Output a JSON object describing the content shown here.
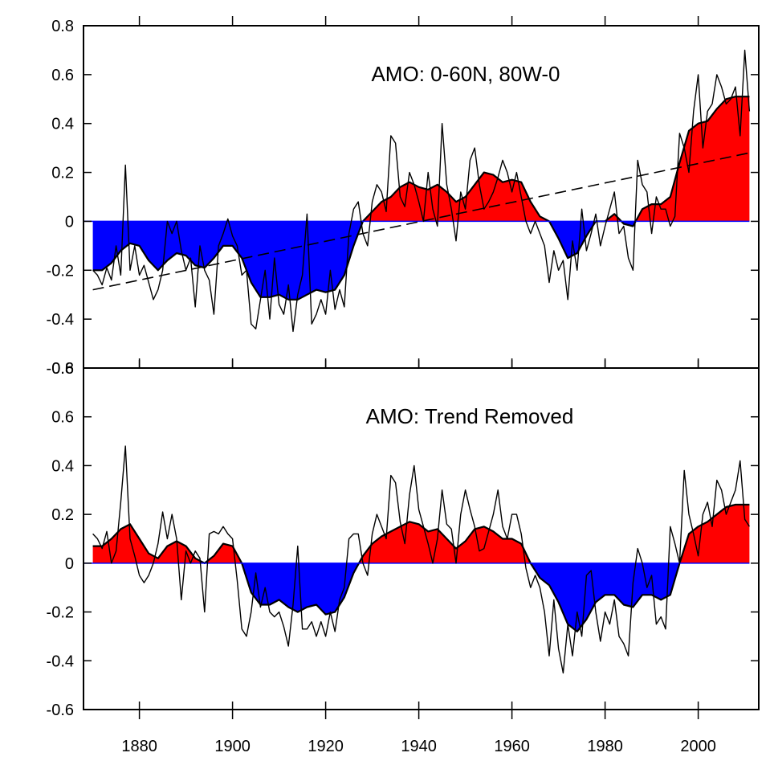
{
  "chart_data": [
    {
      "type": "area",
      "title": "AMO: 0-60N, 80W-0",
      "xlabel": "",
      "ylabel": "",
      "xlim": [
        1868,
        2013
      ],
      "ylim": [
        -0.6,
        0.8
      ],
      "y_ticks": [
        "0.8",
        "0.6",
        "0.4",
        "0.2",
        "0",
        "-0.2",
        "-0.4",
        "-0.6"
      ],
      "x_ticks": [
        1880,
        1900,
        1920,
        1940,
        1960,
        1980,
        2000
      ],
      "colors": {
        "positive": "#ff0000",
        "negative": "#0000ff"
      },
      "series": [
        {
          "kind": "smoothed-fill",
          "x": [
            1870,
            1872,
            1874,
            1876,
            1878,
            1880,
            1882,
            1884,
            1886,
            1888,
            1890,
            1892,
            1894,
            1896,
            1898,
            1900,
            1902,
            1904,
            1906,
            1908,
            1910,
            1912,
            1914,
            1916,
            1918,
            1920,
            1922,
            1924,
            1926,
            1928,
            1930,
            1932,
            1934,
            1936,
            1938,
            1940,
            1942,
            1944,
            1946,
            1948,
            1950,
            1952,
            1954,
            1956,
            1958,
            1960,
            1962,
            1964,
            1966,
            1968,
            1970,
            1972,
            1974,
            1976,
            1978,
            1980,
            1982,
            1984,
            1986,
            1988,
            1990,
            1992,
            1994,
            1996,
            1998,
            2000,
            2002,
            2004,
            2006,
            2008,
            2010,
            2011
          ],
          "values": [
            -0.2,
            -0.2,
            -0.17,
            -0.12,
            -0.09,
            -0.1,
            -0.16,
            -0.2,
            -0.16,
            -0.13,
            -0.14,
            -0.18,
            -0.19,
            -0.15,
            -0.1,
            -0.1,
            -0.15,
            -0.25,
            -0.31,
            -0.31,
            -0.3,
            -0.32,
            -0.32,
            -0.3,
            -0.28,
            -0.29,
            -0.28,
            -0.22,
            -0.1,
            0.0,
            0.04,
            0.08,
            0.1,
            0.14,
            0.16,
            0.14,
            0.13,
            0.15,
            0.12,
            0.08,
            0.1,
            0.15,
            0.2,
            0.19,
            0.16,
            0.17,
            0.16,
            0.08,
            0.02,
            0.0,
            -0.07,
            -0.15,
            -0.13,
            -0.06,
            0.0,
            0.0,
            0.03,
            -0.01,
            -0.02,
            0.05,
            0.07,
            0.07,
            0.1,
            0.24,
            0.37,
            0.4,
            0.41,
            0.46,
            0.5,
            0.51,
            0.51,
            0.51
          ]
        },
        {
          "kind": "annual-line",
          "x": [
            1870,
            1871,
            1872,
            1873,
            1874,
            1875,
            1876,
            1877,
            1878,
            1879,
            1880,
            1881,
            1882,
            1883,
            1884,
            1885,
            1886,
            1887,
            1888,
            1889,
            1890,
            1891,
            1892,
            1893,
            1894,
            1895,
            1896,
            1897,
            1898,
            1899,
            1900,
            1901,
            1902,
            1903,
            1904,
            1905,
            1906,
            1907,
            1908,
            1909,
            1910,
            1911,
            1912,
            1913,
            1914,
            1915,
            1916,
            1917,
            1918,
            1919,
            1920,
            1921,
            1922,
            1923,
            1924,
            1925,
            1926,
            1927,
            1928,
            1929,
            1930,
            1931,
            1932,
            1933,
            1934,
            1935,
            1936,
            1937,
            1938,
            1939,
            1940,
            1941,
            1942,
            1943,
            1944,
            1945,
            1946,
            1947,
            1948,
            1949,
            1950,
            1951,
            1952,
            1953,
            1954,
            1955,
            1956,
            1957,
            1958,
            1959,
            1960,
            1961,
            1962,
            1963,
            1964,
            1965,
            1966,
            1967,
            1968,
            1969,
            1970,
            1971,
            1972,
            1973,
            1974,
            1975,
            1976,
            1977,
            1978,
            1979,
            1980,
            1981,
            1982,
            1983,
            1984,
            1985,
            1986,
            1987,
            1988,
            1989,
            1990,
            1991,
            1992,
            1993,
            1994,
            1995,
            1996,
            1997,
            1998,
            1999,
            2000,
            2001,
            2002,
            2003,
            2004,
            2005,
            2006,
            2007,
            2008,
            2009,
            2010,
            2011
          ],
          "values": [
            -0.2,
            -0.22,
            -0.26,
            -0.19,
            -0.24,
            -0.1,
            -0.22,
            0.23,
            -0.2,
            -0.1,
            -0.22,
            -0.18,
            -0.25,
            -0.32,
            -0.28,
            -0.2,
            0.0,
            -0.05,
            0.0,
            -0.12,
            -0.2,
            -0.15,
            -0.35,
            -0.1,
            -0.2,
            -0.24,
            -0.38,
            -0.1,
            -0.05,
            0.01,
            -0.06,
            -0.1,
            -0.22,
            -0.2,
            -0.42,
            -0.44,
            -0.32,
            -0.2,
            -0.4,
            -0.15,
            -0.34,
            -0.38,
            -0.26,
            -0.45,
            -0.3,
            -0.22,
            0.03,
            -0.42,
            -0.38,
            -0.32,
            -0.38,
            -0.2,
            -0.36,
            -0.28,
            -0.35,
            -0.05,
            0.05,
            0.08,
            -0.05,
            -0.1,
            0.08,
            0.15,
            0.12,
            0.04,
            0.35,
            0.32,
            0.1,
            0.06,
            0.2,
            0.15,
            0.08,
            0.0,
            0.2,
            0.05,
            -0.02,
            0.4,
            0.15,
            0.05,
            -0.08,
            0.12,
            0.05,
            0.25,
            0.3,
            0.15,
            0.05,
            0.08,
            0.12,
            0.18,
            0.25,
            0.2,
            0.12,
            0.2,
            0.1,
            0.0,
            -0.05,
            0.0,
            -0.05,
            -0.1,
            -0.25,
            -0.12,
            -0.2,
            -0.16,
            -0.32,
            -0.08,
            -0.2,
            0.05,
            -0.12,
            -0.05,
            0.03,
            -0.1,
            -0.02,
            0.05,
            0.12,
            -0.05,
            -0.02,
            -0.15,
            -0.2,
            0.25,
            0.15,
            0.12,
            -0.05,
            0.1,
            0.05,
            0.05,
            -0.02,
            0.02,
            0.36,
            0.3,
            0.2,
            0.45,
            0.6,
            0.3,
            0.45,
            0.48,
            0.6,
            0.55,
            0.48,
            0.5,
            0.55,
            0.35,
            0.7,
            0.45
          ]
        },
        {
          "kind": "trend-dashed",
          "x": [
            1870,
            2011
          ],
          "values": [
            -0.28,
            0.28
          ]
        }
      ]
    },
    {
      "type": "area",
      "title": "AMO: Trend Removed",
      "xlabel": "",
      "ylabel": "",
      "xlim": [
        1868,
        2013
      ],
      "ylim": [
        -0.6,
        0.8
      ],
      "y_ticks": [
        "0.8",
        "0.6",
        "0.4",
        "0.2",
        "0",
        "-0.2",
        "-0.4",
        "-0.6"
      ],
      "x_ticks": [
        1880,
        1900,
        1920,
        1940,
        1960,
        1980,
        2000
      ],
      "x_tick_labels": [
        "1880",
        "1900",
        "1920",
        "1940",
        "1960",
        "1980",
        "2000"
      ],
      "colors": {
        "positive": "#ff0000",
        "negative": "#0000ff"
      },
      "series": [
        {
          "kind": "smoothed-fill",
          "x": [
            1870,
            1872,
            1874,
            1876,
            1878,
            1880,
            1882,
            1884,
            1886,
            1888,
            1890,
            1892,
            1894,
            1896,
            1898,
            1900,
            1902,
            1904,
            1906,
            1908,
            1910,
            1912,
            1914,
            1916,
            1918,
            1920,
            1922,
            1924,
            1926,
            1928,
            1930,
            1932,
            1934,
            1936,
            1938,
            1940,
            1942,
            1944,
            1946,
            1948,
            1950,
            1952,
            1954,
            1956,
            1958,
            1960,
            1962,
            1964,
            1966,
            1968,
            1970,
            1972,
            1974,
            1976,
            1978,
            1980,
            1982,
            1984,
            1986,
            1988,
            1990,
            1992,
            1994,
            1996,
            1998,
            2000,
            2002,
            2004,
            2006,
            2008,
            2010,
            2011
          ],
          "values": [
            0.07,
            0.07,
            0.1,
            0.14,
            0.16,
            0.1,
            0.04,
            0.02,
            0.07,
            0.09,
            0.07,
            0.02,
            0.0,
            0.03,
            0.08,
            0.07,
            0.0,
            -0.12,
            -0.17,
            -0.17,
            -0.15,
            -0.18,
            -0.2,
            -0.18,
            -0.17,
            -0.21,
            -0.2,
            -0.14,
            -0.04,
            0.03,
            0.08,
            0.11,
            0.13,
            0.15,
            0.17,
            0.16,
            0.13,
            0.14,
            0.1,
            0.06,
            0.09,
            0.14,
            0.15,
            0.13,
            0.1,
            0.1,
            0.08,
            0.0,
            -0.06,
            -0.09,
            -0.16,
            -0.25,
            -0.28,
            -0.23,
            -0.16,
            -0.13,
            -0.13,
            -0.17,
            -0.18,
            -0.13,
            -0.13,
            -0.15,
            -0.13,
            0.0,
            0.12,
            0.15,
            0.17,
            0.2,
            0.23,
            0.24,
            0.24,
            0.24
          ]
        },
        {
          "kind": "annual-line",
          "x": [
            1870,
            1871,
            1872,
            1873,
            1874,
            1875,
            1876,
            1877,
            1878,
            1879,
            1880,
            1881,
            1882,
            1883,
            1884,
            1885,
            1886,
            1887,
            1888,
            1889,
            1890,
            1891,
            1892,
            1893,
            1894,
            1895,
            1896,
            1897,
            1898,
            1899,
            1900,
            1901,
            1902,
            1903,
            1904,
            1905,
            1906,
            1907,
            1908,
            1909,
            1910,
            1911,
            1912,
            1913,
            1914,
            1915,
            1916,
            1917,
            1918,
            1919,
            1920,
            1921,
            1922,
            1923,
            1924,
            1925,
            1926,
            1927,
            1928,
            1929,
            1930,
            1931,
            1932,
            1933,
            1934,
            1935,
            1936,
            1937,
            1938,
            1939,
            1940,
            1941,
            1942,
            1943,
            1944,
            1945,
            1946,
            1947,
            1948,
            1949,
            1950,
            1951,
            1952,
            1953,
            1954,
            1955,
            1956,
            1957,
            1958,
            1959,
            1960,
            1961,
            1962,
            1963,
            1964,
            1965,
            1966,
            1967,
            1968,
            1969,
            1970,
            1971,
            1972,
            1973,
            1974,
            1975,
            1976,
            1977,
            1978,
            1979,
            1980,
            1981,
            1982,
            1983,
            1984,
            1985,
            1986,
            1987,
            1988,
            1989,
            1990,
            1991,
            1992,
            1993,
            1994,
            1995,
            1996,
            1997,
            1998,
            1999,
            2000,
            2001,
            2002,
            2003,
            2004,
            2005,
            2006,
            2007,
            2008,
            2009,
            2010,
            2011
          ],
          "values": [
            0.12,
            0.1,
            0.06,
            0.13,
            0.0,
            0.05,
            0.25,
            0.48,
            0.1,
            0.03,
            -0.05,
            -0.08,
            -0.05,
            0.0,
            0.08,
            0.21,
            0.1,
            0.2,
            0.1,
            -0.15,
            0.05,
            0.0,
            0.05,
            0.02,
            -0.2,
            0.12,
            0.13,
            0.12,
            0.15,
            0.12,
            0.1,
            -0.07,
            -0.27,
            -0.3,
            -0.2,
            -0.04,
            -0.18,
            -0.1,
            -0.2,
            -0.22,
            -0.2,
            -0.26,
            -0.34,
            -0.17,
            0.07,
            -0.27,
            -0.27,
            -0.24,
            -0.3,
            -0.24,
            -0.3,
            -0.2,
            -0.28,
            -0.15,
            -0.1,
            0.1,
            0.12,
            0.12,
            0.0,
            -0.05,
            0.12,
            0.2,
            0.15,
            0.1,
            0.36,
            0.33,
            0.17,
            0.08,
            0.28,
            0.4,
            0.22,
            0.15,
            0.08,
            0.0,
            0.1,
            0.3,
            0.16,
            0.14,
            0.0,
            0.2,
            0.3,
            0.22,
            0.15,
            0.05,
            0.06,
            0.13,
            0.2,
            0.3,
            0.15,
            0.1,
            0.2,
            0.2,
            0.12,
            -0.02,
            -0.1,
            -0.05,
            -0.1,
            -0.2,
            -0.38,
            -0.15,
            -0.35,
            -0.45,
            -0.25,
            -0.38,
            -0.2,
            -0.3,
            -0.05,
            -0.03,
            -0.2,
            -0.32,
            -0.2,
            -0.25,
            -0.15,
            -0.3,
            -0.33,
            -0.38,
            -0.08,
            0.06,
            0.0,
            -0.1,
            -0.05,
            -0.25,
            -0.22,
            -0.27,
            0.15,
            0.08,
            0.0,
            0.38,
            0.2,
            0.12,
            0.03,
            0.2,
            0.25,
            0.15,
            0.34,
            0.3,
            0.2,
            0.25,
            0.3,
            0.42,
            0.18,
            0.15
          ]
        }
      ]
    }
  ]
}
